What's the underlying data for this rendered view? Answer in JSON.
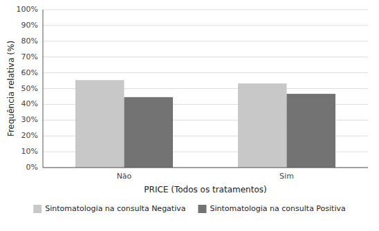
{
  "chart_data": {
    "type": "bar",
    "categories": [
      "Não",
      "Sim"
    ],
    "series": [
      {
        "name": "Sintomatologia na consulta Negativa",
        "color": "#c8c8c8",
        "values": [
          55.4,
          53.3
        ]
      },
      {
        "name": "Sintomatologia na consulta Positiva",
        "color": "#737373",
        "values": [
          44.6,
          46.7
        ]
      }
    ],
    "xlabel": "PRICE (Todos os tratamentos)",
    "ylabel": "Frequência relativa (%)",
    "ylim": [
      0,
      100
    ],
    "yticks": [
      {
        "value": 0,
        "label": "0%"
      },
      {
        "value": 10,
        "label": "10%"
      },
      {
        "value": 20,
        "label": "20%"
      },
      {
        "value": 30,
        "label": "30%"
      },
      {
        "value": 40,
        "label": "40%"
      },
      {
        "value": 50,
        "label": "50%"
      },
      {
        "value": 60,
        "label": "60%"
      },
      {
        "value": 70,
        "label": "70%"
      },
      {
        "value": 80,
        "label": "80%"
      },
      {
        "value": 90,
        "label": "90%"
      },
      {
        "value": 100,
        "label": "100%"
      }
    ],
    "grid": true,
    "legend": "bottom"
  }
}
